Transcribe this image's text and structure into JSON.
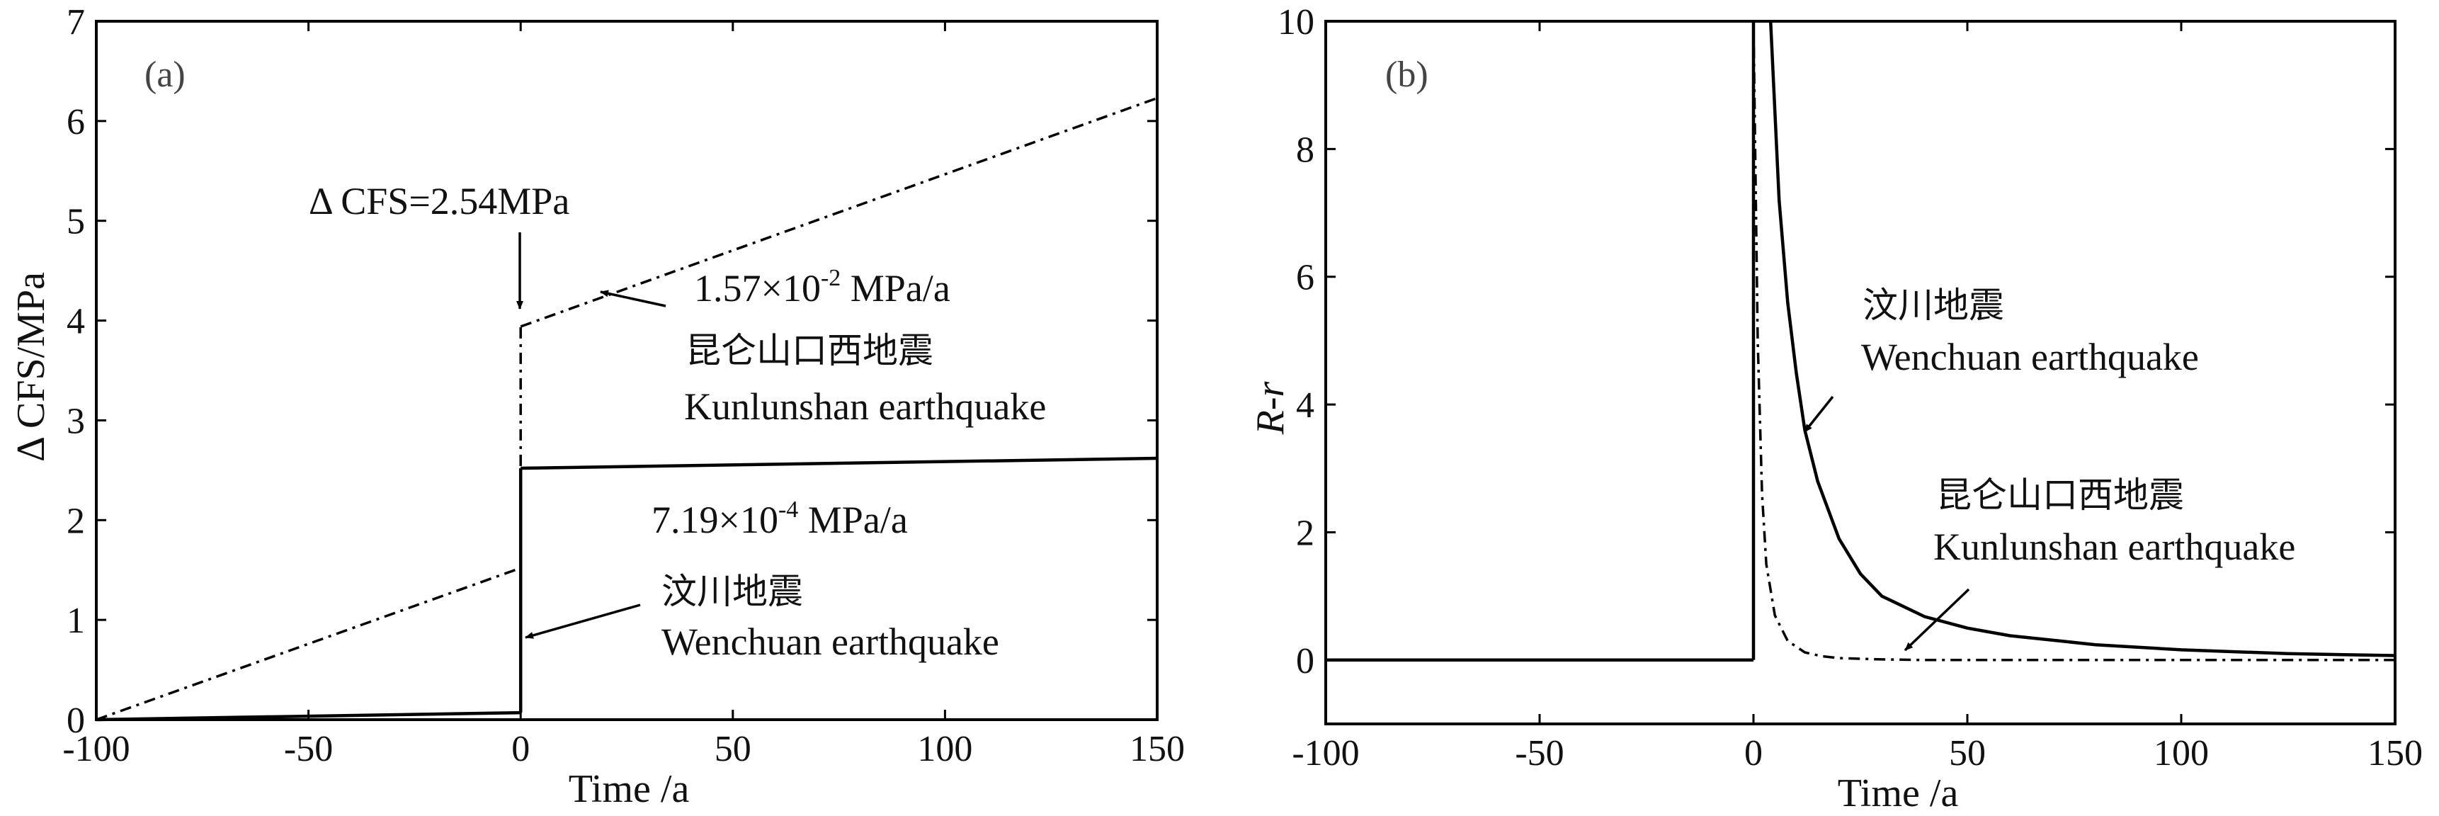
{
  "chart_data": [
    {
      "type": "line",
      "panel_label": "(a)",
      "xlabel": "Time /a",
      "ylabel": "Δ CFS/MPa",
      "xlim": [
        -100,
        150
      ],
      "ylim": [
        0,
        7
      ],
      "x_ticks": [
        -100,
        -50,
        0,
        50,
        100,
        150
      ],
      "y_ticks": [
        0,
        1,
        2,
        3,
        4,
        5,
        6,
        7
      ],
      "series": [
        {
          "name": "Kunlunshan earthquake",
          "style": "dash-dot",
          "segments": [
            {
              "x": [
                -100,
                0
              ],
              "y": [
                0,
                1.52
              ]
            },
            {
              "x": [
                0,
                0
              ],
              "y": [
                1.52,
                3.94
              ]
            },
            {
              "x": [
                0,
                150
              ],
              "y": [
                3.94,
                6.23
              ]
            }
          ]
        },
        {
          "name": "Wenchuan earthquake",
          "style": "solid",
          "segments": [
            {
              "x": [
                -100,
                0
              ],
              "y": [
                0,
                0.07
              ]
            },
            {
              "x": [
                0,
                0
              ],
              "y": [
                0.07,
                2.52
              ]
            },
            {
              "x": [
                0,
                150
              ],
              "y": [
                2.52,
                2.62
              ]
            }
          ]
        }
      ],
      "annotations": {
        "dcfs": "Δ CFS=2.54MPa",
        "kunlun_rate_base": "1.57×10",
        "kunlun_rate_exp": "-2",
        "kunlun_rate_unit": " MPa/a",
        "kunlun_cn": "昆仑山口西地震",
        "kunlun_en": "Kunlunshan earthquake",
        "wen_rate_base": "7.19×10",
        "wen_rate_exp": "-4",
        "wen_rate_unit": " MPa/a",
        "wen_cn": "汶川地震",
        "wen_en": "Wenchuan earthquake"
      }
    },
    {
      "type": "line",
      "panel_label": "(b)",
      "xlabel": "Time /a",
      "ylabel": "R-r",
      "xlim": [
        -100,
        150
      ],
      "ylim": [
        -1,
        10
      ],
      "x_ticks": [
        -100,
        -50,
        0,
        50,
        100,
        150
      ],
      "y_ticks": [
        0,
        2,
        4,
        6,
        8,
        10
      ],
      "series": [
        {
          "name": "Wenchuan earthquake",
          "style": "solid",
          "segments": [
            {
              "x": [
                -100,
                0
              ],
              "y": [
                0,
                0
              ]
            },
            {
              "x": [
                0,
                0
              ],
              "y": [
                0,
                10
              ]
            },
            {
              "x": [
                4,
                6,
                8,
                10,
                12,
                15,
                20,
                25,
                30,
                40,
                50,
                60,
                80,
                100,
                125,
                150
              ],
              "y": [
                10,
                7.2,
                5.6,
                4.5,
                3.6,
                2.8,
                1.9,
                1.35,
                1.0,
                0.68,
                0.5,
                0.38,
                0.24,
                0.16,
                0.1,
                0.07
              ]
            }
          ]
        },
        {
          "name": "Kunlunshan earthquake",
          "style": "dash-dot",
          "segments": [
            {
              "x": [
                0,
                1,
                2,
                3,
                5,
                8,
                12,
                16,
                20,
                30,
                40,
                60,
                100,
                150
              ],
              "y": [
                10,
                5.0,
                2.6,
                1.5,
                0.7,
                0.3,
                0.12,
                0.06,
                0.03,
                0.01,
                0,
                0,
                0,
                0
              ]
            }
          ]
        }
      ],
      "annotations": {
        "wen_cn": "汶川地震",
        "wen_en": "Wenchuan earthquake",
        "kunlun_cn": "昆仑山口西地震",
        "kunlun_en": "Kunlunshan earthquake"
      }
    }
  ]
}
